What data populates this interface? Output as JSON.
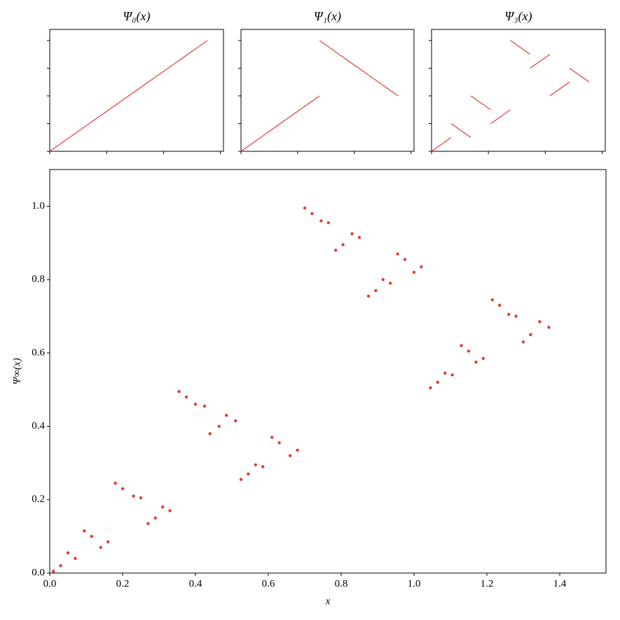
{
  "chart_data": [
    {
      "type": "line",
      "title": "Ψ₀(x)",
      "xlim": [
        0,
        1.527
      ],
      "ylim": [
        0,
        1.1
      ],
      "xticks": [
        0,
        0.5,
        1.0,
        1.5
      ],
      "yticks": [
        0,
        0.25,
        0.5,
        0.75,
        1.0
      ],
      "tick_labels": false,
      "series": [
        {
          "color": "#e03c31",
          "x": [
            0,
            1.386
          ],
          "values": [
            0,
            1.0
          ]
        }
      ]
    },
    {
      "type": "line",
      "title": "Ψ₁(x)",
      "xlim": [
        0,
        1.527
      ],
      "ylim": [
        0,
        1.1
      ],
      "xticks": [
        0,
        0.5,
        1.0,
        1.5
      ],
      "yticks": [
        0,
        0.25,
        0.5,
        0.75,
        1.0
      ],
      "tick_labels": false,
      "series": [
        {
          "color": "#e03c31",
          "x": [
            0,
            0.693,
            null,
            0.693,
            1.386
          ],
          "values": [
            0,
            0.5,
            null,
            1.0,
            0.5
          ]
        }
      ]
    },
    {
      "type": "line",
      "title": "Ψ₃(x)",
      "xlim": [
        0,
        1.527
      ],
      "ylim": [
        0,
        1.1
      ],
      "xticks": [
        0,
        0.5,
        1.0,
        1.5
      ],
      "yticks": [
        0,
        0.25,
        0.5,
        0.75,
        1.0
      ],
      "tick_labels": false,
      "series": [
        {
          "color": "#e03c31",
          "x": [
            0,
            0.173,
            null,
            0.173,
            0.346,
            null,
            0.346,
            0.52,
            null,
            0.52,
            0.693,
            null,
            0.693,
            0.866,
            null,
            0.866,
            1.04,
            null,
            1.04,
            1.213,
            null,
            1.213,
            1.386
          ],
          "values": [
            0,
            0.125,
            null,
            0.25,
            0.125,
            null,
            0.5,
            0.375,
            null,
            0.25,
            0.375,
            null,
            1.0,
            0.875,
            null,
            0.75,
            0.875,
            null,
            0.5,
            0.625,
            null,
            0.75,
            0.625
          ]
        }
      ]
    },
    {
      "type": "scatter",
      "x_label": "x",
      "y_label": "Ψ∞(x)",
      "xlim": [
        0,
        1.527
      ],
      "ylim": [
        0,
        1.1
      ],
      "tick_labels": true,
      "xticks": [
        {
          "value": 0,
          "label": "0.0"
        },
        {
          "value": 0.2,
          "label": "0.2"
        },
        {
          "value": 0.4,
          "label": "0.4"
        },
        {
          "value": 0.6,
          "label": "0.6"
        },
        {
          "value": 0.8,
          "label": "0.8"
        },
        {
          "value": 1.0,
          "label": "1.0"
        },
        {
          "value": 1.2,
          "label": "1.2"
        },
        {
          "value": 1.4,
          "label": "1.4"
        }
      ],
      "yticks": [
        {
          "value": 0,
          "label": "0.0"
        },
        {
          "value": 0.2,
          "label": "0.2"
        },
        {
          "value": 0.4,
          "label": "0.4"
        },
        {
          "value": 0.6,
          "label": "0.6"
        },
        {
          "value": 0.8,
          "label": "0.8"
        },
        {
          "value": 1.0,
          "label": "1.0"
        }
      ],
      "series": [
        {
          "color": "#e03c31",
          "x": [
            0.01,
            0.03,
            0.05,
            0.07,
            0.095,
            0.115,
            0.14,
            0.16,
            0.18,
            0.2,
            0.23,
            0.25,
            0.27,
            0.29,
            0.31,
            0.33,
            0.355,
            0.375,
            0.4,
            0.425,
            0.44,
            0.465,
            0.485,
            0.51,
            0.525,
            0.545,
            0.565,
            0.585,
            0.61,
            0.63,
            0.66,
            0.68,
            0.7,
            0.72,
            0.745,
            0.765,
            0.785,
            0.805,
            0.83,
            0.85,
            0.875,
            0.895,
            0.915,
            0.935,
            0.955,
            0.975,
            1.0,
            1.02,
            1.045,
            1.065,
            1.085,
            1.105,
            1.13,
            1.15,
            1.17,
            1.19,
            1.215,
            1.235,
            1.26,
            1.28,
            1.3,
            1.32,
            1.345,
            1.37
          ],
          "values": [
            0.005,
            0.02,
            0.055,
            0.04,
            0.115,
            0.1,
            0.07,
            0.085,
            0.245,
            0.23,
            0.21,
            0.205,
            0.135,
            0.15,
            0.18,
            0.17,
            0.495,
            0.48,
            0.46,
            0.455,
            0.38,
            0.4,
            0.43,
            0.415,
            0.255,
            0.27,
            0.295,
            0.29,
            0.37,
            0.355,
            0.32,
            0.335,
            0.995,
            0.98,
            0.96,
            0.955,
            0.88,
            0.895,
            0.925,
            0.915,
            0.755,
            0.77,
            0.8,
            0.79,
            0.87,
            0.855,
            0.82,
            0.835,
            0.505,
            0.52,
            0.545,
            0.54,
            0.62,
            0.605,
            0.575,
            0.585,
            0.745,
            0.73,
            0.705,
            0.7,
            0.63,
            0.65,
            0.685,
            0.67
          ]
        }
      ]
    }
  ]
}
